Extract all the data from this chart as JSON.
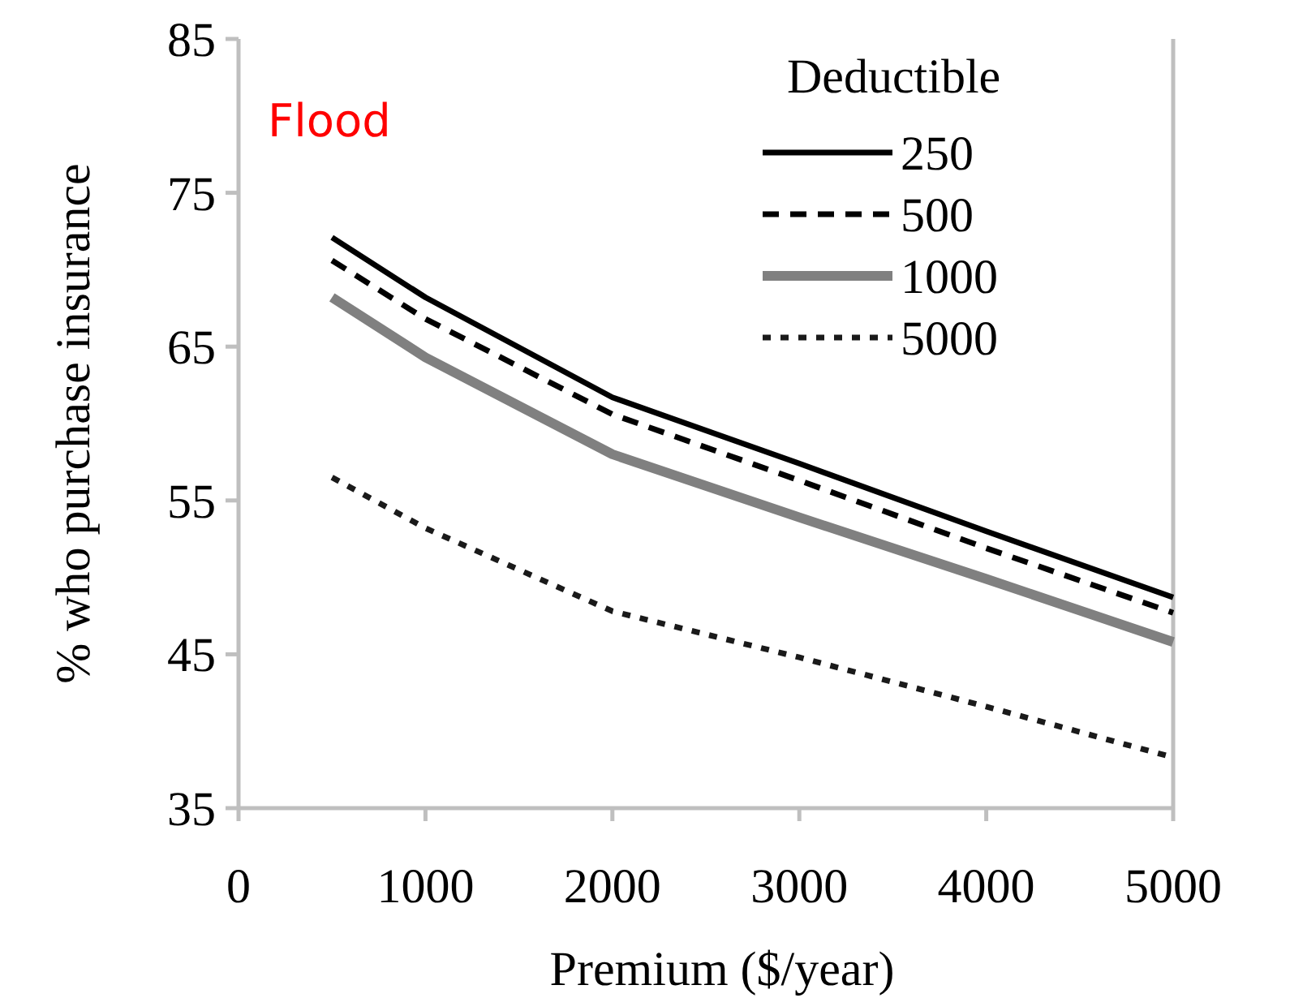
{
  "chart_data": {
    "type": "line",
    "xlabel": "Premium ($/year)",
    "ylabel": "% who purchase insurance",
    "legend_title": "Deductible",
    "annotations": [
      "Flood"
    ],
    "x": [
      500,
      1000,
      2000,
      3000,
      4000,
      5000
    ],
    "series": [
      {
        "name": "250",
        "color": "#000000",
        "line_style": "solid",
        "values": [
          72.1,
          68.2,
          61.7,
          57.4,
          53.0,
          48.7
        ]
      },
      {
        "name": "500",
        "color": "#000000",
        "line_style": "dashed",
        "values": [
          70.6,
          66.8,
          60.6,
          56.3,
          51.9,
          47.7
        ]
      },
      {
        "name": "1000",
        "color": "#808080",
        "line_style": "solid",
        "values": [
          68.2,
          64.3,
          58.0,
          53.9,
          49.9,
          45.8
        ]
      },
      {
        "name": "5000",
        "color": "#1a1a1a",
        "line_style": "dotted",
        "values": [
          56.5,
          53.2,
          47.8,
          44.8,
          41.6,
          38.3
        ]
      }
    ],
    "xlim": [
      0,
      5000
    ],
    "xticks": [
      0,
      1000,
      2000,
      3000,
      4000,
      5000
    ],
    "ylim": [
      35,
      85
    ],
    "yticks": [
      35,
      45,
      55,
      65,
      75,
      85
    ],
    "grid": false,
    "legend": "top right",
    "marker": "none"
  }
}
